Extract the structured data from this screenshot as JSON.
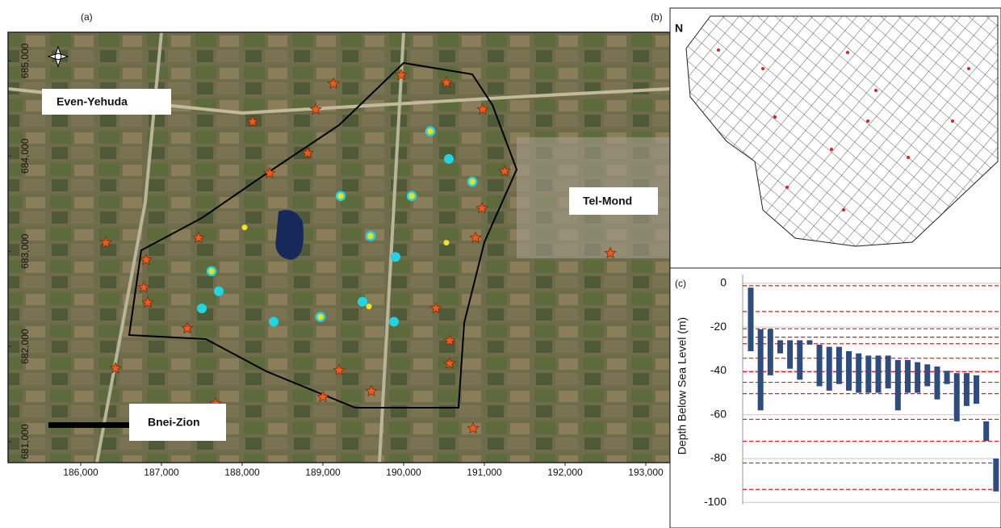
{
  "panels": {
    "a": "(a)",
    "b": "(b)",
    "c": "(c)"
  },
  "map": {
    "type": "map",
    "xlim": [
      185100,
      193300
    ],
    "ylim": [
      680780,
      685300
    ],
    "xticks": [
      {
        "value": 186000,
        "label": "186,000"
      },
      {
        "value": 187000,
        "label": "187,000"
      },
      {
        "value": 188000,
        "label": "188,000"
      },
      {
        "value": 189000,
        "label": "189,000"
      },
      {
        "value": 190000,
        "label": "190,000"
      },
      {
        "value": 191000,
        "label": "191,000"
      },
      {
        "value": 192000,
        "label": "192,000"
      },
      {
        "value": 193000,
        "label": "193,000"
      }
    ],
    "yticks": [
      {
        "value": 681000,
        "label": "681,000"
      },
      {
        "value": 682000,
        "label": "682,000"
      },
      {
        "value": 683000,
        "label": "683,000"
      },
      {
        "value": 684000,
        "label": "684,000"
      },
      {
        "value": 685000,
        "label": "685,000"
      }
    ],
    "places": [
      "Even-Yehuda",
      "Tel-Mond",
      "Bnei-Zion"
    ],
    "stars": {
      "color": "#f05a1e",
      "x": [
        189130,
        189970,
        190530,
        188910,
        190980,
        188130,
        188810,
        188340,
        191250,
        190970,
        186310,
        187460,
        190890,
        186810,
        186780,
        186830,
        190400,
        187320,
        190570,
        186430,
        190570,
        189200,
        189600,
        189000,
        187670,
        190860,
        192560
      ],
      "y": [
        684760,
        684850,
        684770,
        684490,
        684490,
        684360,
        684030,
        683820,
        683840,
        683450,
        683090,
        683140,
        683140,
        682910,
        682620,
        682460,
        682400,
        682190,
        682060,
        681770,
        681820,
        681750,
        681530,
        681470,
        681400,
        681140,
        682980
      ]
    },
    "ringed": {
      "color": "#22d3e0",
      "ring": "#e8e020",
      "x": [
        190330,
        189220,
        190100,
        190850,
        189590,
        187620,
        188970
      ],
      "y": [
        684260,
        683580,
        683580,
        683730,
        683160,
        682790,
        682310
      ]
    },
    "wells": {
      "color": "#22d3e0",
      "x": [
        190560,
        189900,
        187710,
        187500,
        188390,
        189490,
        189880
      ],
      "y": [
        683970,
        682940,
        682580,
        682400,
        682260,
        682470,
        682260
      ]
    },
    "yellow": {
      "color": "#f2e22a",
      "x": [
        188030,
        190530,
        189570
      ],
      "y": [
        683250,
        683090,
        682420
      ]
    }
  },
  "grid3d": {
    "north": "N"
  },
  "chart_data": {
    "type": "range_bar",
    "ylabel": "Depth Below Sea Level (m)",
    "ylim": [
      -101,
      4
    ],
    "yticks": [
      0,
      -20,
      -40,
      -60,
      -80,
      -100
    ],
    "grid": true,
    "color": "#2e4d7e",
    "top": [
      -2,
      -21,
      -21,
      -26,
      -26,
      -26,
      -26,
      -28,
      -29,
      -29,
      -31,
      -32,
      -33,
      -33,
      -33,
      -35,
      -35,
      -36,
      -37,
      -38,
      -40,
      -41,
      -41,
      -42,
      -63,
      -80
    ],
    "bottom": [
      -31,
      -58,
      -42,
      -32,
      -39,
      -44,
      -28,
      -47,
      -49,
      -46,
      -49,
      -50,
      -50,
      -50,
      -48,
      -58,
      -50,
      -50,
      -47,
      -53,
      -46,
      -63,
      -56,
      -55,
      -72,
      -95
    ],
    "layers": [
      -1.1,
      -12.9,
      -20.8,
      -24.6,
      -27.6,
      -34.2,
      -40.4,
      -45.2,
      -50.4,
      -62.1,
      -72.1,
      -82,
      -94.1
    ],
    "layer_color": "#d62020"
  }
}
